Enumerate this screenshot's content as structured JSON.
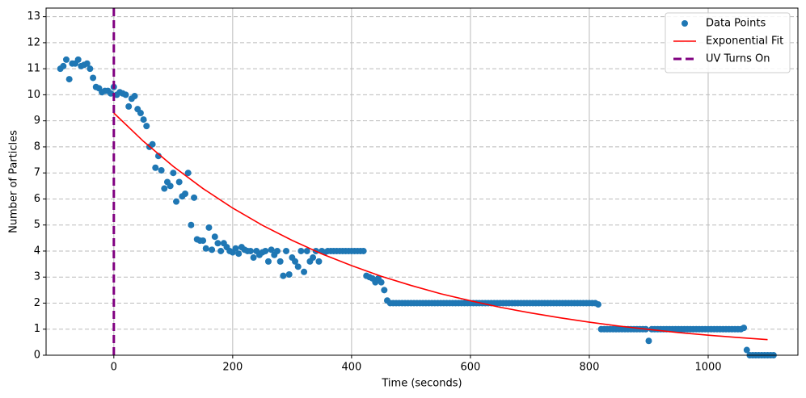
{
  "chart_data": {
    "type": "scatter",
    "xlabel": "Time (seconds)",
    "ylabel": "Number of Particles",
    "xlim": [
      -114,
      1151
    ],
    "ylim": [
      0,
      13.33
    ],
    "xticks": [
      0,
      200,
      400,
      600,
      800,
      1000
    ],
    "yticks": [
      0,
      1,
      2,
      3,
      4,
      5,
      6,
      7,
      8,
      9,
      10,
      11,
      12,
      13
    ],
    "grid": true,
    "legend": "upper right",
    "series": [
      {
        "name": "Data Points",
        "type": "scatter",
        "color": "#1f77b4",
        "x": [
          -90,
          -85,
          -80,
          -75,
          -70,
          -65,
          -60,
          -55,
          -50,
          -45,
          -40,
          -35,
          -30,
          -25,
          -20,
          -15,
          -10,
          -5,
          0,
          5,
          10,
          15,
          20,
          25,
          30,
          35,
          40,
          45,
          50,
          55,
          60,
          65,
          70,
          75,
          80,
          85,
          90,
          95,
          100,
          105,
          110,
          115,
          120,
          125,
          130,
          135,
          140,
          145,
          150,
          155,
          160,
          165,
          170,
          175,
          180,
          185,
          190,
          195,
          200,
          205,
          210,
          215,
          220,
          225,
          230,
          235,
          240,
          245,
          250,
          255,
          260,
          265,
          270,
          275,
          280,
          285,
          290,
          295,
          300,
          305,
          310,
          315,
          320,
          325,
          330,
          335,
          340,
          345,
          350,
          355,
          360,
          365,
          370,
          375,
          380,
          385,
          390,
          395,
          400,
          405,
          410,
          415,
          420,
          425,
          430,
          435,
          440,
          445,
          450,
          455,
          460,
          465,
          470,
          475,
          480,
          485,
          490,
          495,
          500,
          505,
          510,
          515,
          520,
          525,
          530,
          535,
          540,
          545,
          550,
          555,
          560,
          565,
          570,
          575,
          580,
          585,
          590,
          595,
          600,
          605,
          610,
          615,
          620,
          625,
          630,
          635,
          640,
          645,
          650,
          655,
          660,
          665,
          670,
          675,
          680,
          685,
          690,
          695,
          700,
          705,
          710,
          715,
          720,
          725,
          730,
          735,
          740,
          745,
          750,
          755,
          760,
          765,
          770,
          775,
          780,
          785,
          790,
          795,
          800,
          805,
          810,
          815,
          820,
          825,
          830,
          835,
          840,
          845,
          850,
          855,
          860,
          865,
          870,
          875,
          880,
          885,
          890,
          895,
          900,
          905,
          910,
          915,
          920,
          925,
          930,
          935,
          940,
          945,
          950,
          955,
          960,
          965,
          970,
          975,
          980,
          985,
          990,
          995,
          1000,
          1005,
          1010,
          1015,
          1020,
          1025,
          1030,
          1035,
          1040,
          1045,
          1050,
          1055,
          1060,
          1065,
          1070,
          1075,
          1080,
          1085,
          1090,
          1095,
          1100,
          1105,
          1110
        ],
        "values": [
          11.0,
          11.1,
          11.35,
          10.6,
          11.2,
          11.2,
          11.35,
          11.1,
          11.15,
          11.2,
          11.0,
          10.65,
          10.3,
          10.25,
          10.1,
          10.15,
          10.15,
          10.05,
          10.3,
          10.0,
          10.1,
          10.05,
          10.0,
          9.55,
          9.85,
          9.95,
          9.45,
          9.3,
          9.05,
          8.8,
          8.0,
          8.1,
          7.2,
          7.65,
          7.1,
          6.4,
          6.65,
          6.5,
          7.0,
          5.9,
          6.65,
          6.1,
          6.2,
          7.0,
          5.0,
          6.05,
          4.45,
          4.4,
          4.4,
          4.1,
          4.9,
          4.05,
          4.55,
          4.3,
          4.0,
          4.3,
          4.15,
          4.0,
          3.95,
          4.1,
          3.9,
          4.15,
          4.05,
          4.0,
          4.0,
          3.75,
          4.0,
          3.85,
          3.95,
          4.0,
          3.6,
          4.05,
          3.85,
          4.0,
          3.6,
          3.05,
          4.0,
          3.1,
          3.75,
          3.6,
          3.4,
          4.0,
          3.2,
          4.0,
          3.6,
          3.75,
          4.0,
          3.6,
          4.0,
          3.95,
          4.0,
          4.0,
          4.0,
          4.0,
          4.0,
          4.0,
          4.0,
          4.0,
          4.0,
          4.0,
          4.0,
          4.0,
          4.0,
          3.05,
          3.0,
          2.95,
          2.8,
          2.95,
          2.8,
          2.5,
          2.1,
          2.0,
          2.0,
          2.0,
          2.0,
          2.0,
          2.0,
          2.0,
          2.0,
          2.0,
          2.0,
          2.0,
          2.0,
          2.0,
          2.0,
          2.0,
          2.0,
          2.0,
          2.0,
          2.0,
          2.0,
          2.0,
          2.0,
          2.0,
          2.0,
          2.0,
          2.0,
          2.0,
          2.0,
          2.0,
          2.0,
          2.0,
          2.0,
          2.0,
          2.0,
          2.0,
          2.0,
          2.0,
          2.0,
          2.0,
          2.0,
          2.0,
          2.0,
          2.0,
          2.0,
          2.0,
          2.0,
          2.0,
          2.0,
          2.0,
          2.0,
          2.0,
          2.0,
          2.0,
          2.0,
          2.0,
          2.0,
          2.0,
          2.0,
          2.0,
          2.0,
          2.0,
          2.0,
          2.0,
          2.0,
          2.0,
          2.0,
          2.0,
          2.0,
          2.0,
          2.0,
          1.95,
          1.0,
          1.0,
          1.0,
          1.0,
          1.0,
          1.0,
          1.0,
          1.0,
          1.0,
          1.0,
          1.0,
          1.0,
          1.0,
          1.0,
          1.0,
          1.0,
          0.55,
          1.0,
          1.0,
          1.0,
          1.0,
          1.0,
          1.0,
          1.0,
          1.0,
          1.0,
          1.0,
          1.0,
          1.0,
          1.0,
          1.0,
          1.0,
          1.0,
          1.0,
          1.0,
          1.0,
          1.0,
          1.0,
          1.0,
          1.0,
          1.0,
          1.0,
          1.0,
          1.0,
          1.0,
          1.0,
          1.0,
          1.0,
          1.05,
          0.2,
          0.0,
          0.0,
          0.0,
          0.0,
          0.0,
          0.0,
          0.0,
          0.0,
          0.0
        ]
      },
      {
        "name": "Exponential Fit",
        "type": "line",
        "color": "#ff0000",
        "x": [
          0,
          50,
          100,
          150,
          200,
          250,
          300,
          350,
          400,
          450,
          500,
          550,
          600,
          650,
          700,
          750,
          800,
          850,
          900,
          950,
          1000,
          1050,
          1100
        ],
        "values": [
          9.3,
          8.21,
          7.25,
          6.4,
          5.65,
          4.99,
          4.41,
          3.89,
          3.44,
          3.03,
          2.68,
          2.36,
          2.09,
          1.84,
          1.63,
          1.44,
          1.27,
          1.12,
          0.99,
          0.87,
          0.77,
          0.68,
          0.6
        ]
      },
      {
        "name": "UV Turns On",
        "type": "vline",
        "color": "#800080",
        "x": [
          0
        ]
      }
    ]
  }
}
